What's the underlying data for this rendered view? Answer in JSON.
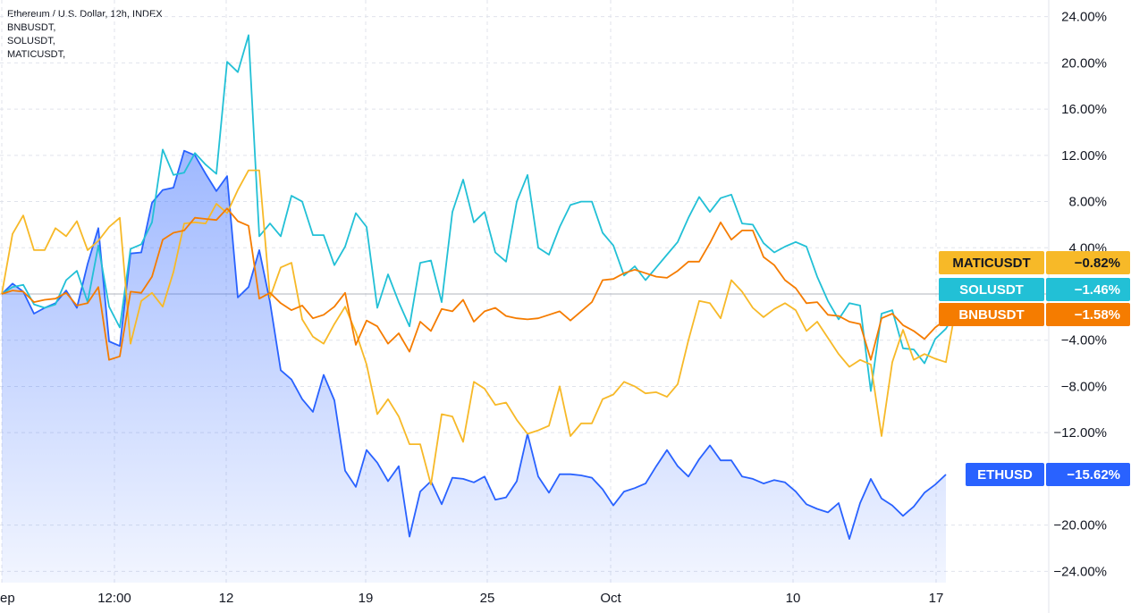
{
  "legend": {
    "main": "Ethereum / U.S. Dollar, 12h, INDEX",
    "compare": [
      "BNBUSDT,",
      "SOLUSDT,",
      "MATICUSDT,"
    ]
  },
  "chart_data": {
    "type": "line",
    "x_tick_labels": [
      "ep",
      "12:00",
      "12",
      "19",
      "25",
      "Oct",
      "10",
      "17"
    ],
    "y_tick_labels": [
      "24.00%",
      "20.00%",
      "16.00%",
      "12.00%",
      "8.00%",
      "4.00%",
      "-4.00%",
      "-8.00%",
      "-12.00%",
      "-20.00%",
      "-24.00%"
    ],
    "y_ticks": [
      24,
      20,
      16,
      12,
      8,
      4,
      -4,
      -8,
      -12,
      -20,
      -24
    ],
    "ylim": [
      -24.5,
      25
    ],
    "grid": true,
    "baseline": 0,
    "series": [
      {
        "name": "ETHUSD",
        "color": "#2962ff",
        "area": true,
        "label": "ETHUSD",
        "last_value": "−15.62%",
        "values": [
          0,
          0.9,
          0.2,
          -1.7,
          -1.2,
          -0.8,
          0.3,
          -1.2,
          2.6,
          5.7,
          -4.1,
          -4.5,
          3.5,
          3.6,
          7.9,
          9,
          9.2,
          12.4,
          12,
          10.4,
          8.9,
          10.2,
          -0.3,
          0.6,
          3.8,
          -0.7,
          -6.6,
          -7.4,
          -9.1,
          -10.2,
          -7,
          -9.2,
          -15.3,
          -16.7,
          -13.5,
          -14.6,
          -16.2,
          -14.9,
          -21,
          -17.1,
          -16.2,
          -18.2,
          -15.9,
          -16,
          -16.3,
          -15.8,
          -17.8,
          -17.6,
          -16.2,
          -12.1,
          -15.8,
          -17.2,
          -15.6,
          -15.6,
          -15.7,
          -15.9,
          -16.9,
          -18.3,
          -17.1,
          -16.8,
          -16.4,
          -14.9,
          -13.5,
          -14.9,
          -15.8,
          -14.3,
          -13.1,
          -14.4,
          -14.4,
          -15.8,
          -16,
          -16.4,
          -16.1,
          -16.3,
          -17.1,
          -18.2,
          -18.6,
          -18.9,
          -18.1,
          -21.2,
          -18.1,
          -16,
          -17.7,
          -18.3,
          -19.2,
          -18.4,
          -17.2,
          -16.5,
          -15.62
        ]
      },
      {
        "name": "SOLUSDT",
        "color": "#22c0d6",
        "area": false,
        "label": "SOLUSDT",
        "last_value": "−1.46%",
        "values": [
          0,
          0.6,
          0.8,
          -0.9,
          -1.2,
          -0.9,
          1.2,
          2,
          -0.7,
          4.2,
          -1.1,
          -2.9,
          3.9,
          4.3,
          6.2,
          12.5,
          10.3,
          10.5,
          12.2,
          11.2,
          10.4,
          20.1,
          19.2,
          22.4,
          5,
          6.1,
          5,
          8.5,
          8,
          5.1,
          5.1,
          2.5,
          4.1,
          7,
          5.8,
          -1.2,
          1.7,
          -0.7,
          -2.8,
          2.7,
          2.9,
          -0.7,
          7.1,
          9.9,
          6.2,
          7.1,
          3.6,
          2.8,
          8,
          10.3,
          4,
          3.4,
          5.8,
          7.7,
          8,
          8,
          5.3,
          4.2,
          1.6,
          2.4,
          1.2,
          2.3,
          3.4,
          4.5,
          6.6,
          8.4,
          7.1,
          8.3,
          8.6,
          6.1,
          6,
          4.4,
          3.6,
          4.1,
          4.5,
          4.1,
          1.5,
          -0.6,
          -2.2,
          -0.8,
          -1,
          -8.4,
          -1.7,
          -1.4,
          -4.7,
          -4.8,
          -6,
          -3.9,
          -3,
          -1.46
        ]
      },
      {
        "name": "MATICUSDT",
        "color": "#f7b928",
        "area": false,
        "label": "MATICUSDT",
        "last_value": "−0.82%",
        "values": [
          0,
          5.2,
          6.8,
          3.8,
          3.8,
          5.7,
          5,
          6.3,
          3.8,
          4.6,
          5.8,
          6.6,
          -4.3,
          -0.6,
          0.1,
          -1.1,
          1.9,
          6.1,
          6.2,
          6.1,
          7.8,
          7,
          9,
          10.7,
          10.7,
          -0.3,
          2.3,
          2.7,
          -2.2,
          -3.7,
          -4.3,
          -2.6,
          -1.1,
          -3.3,
          -6.1,
          -10.4,
          -9.1,
          -10.6,
          -13,
          -13,
          -16.5,
          -10.4,
          -10.6,
          -12.8,
          -7.6,
          -8.2,
          -9.6,
          -9.4,
          -10.9,
          -12.1,
          -11.8,
          -11.4,
          -8,
          -12.3,
          -11.2,
          -11.2,
          -9.1,
          -8.7,
          -7.6,
          -8,
          -8.6,
          -8.5,
          -8.9,
          -7.8,
          -4,
          -0.6,
          -0.8,
          -2.1,
          1.2,
          0.2,
          -1.2,
          -2,
          -1.3,
          -0.8,
          -1.4,
          -3.2,
          -2.4,
          -3.8,
          -5.2,
          -6.3,
          -5.7,
          -6.1,
          -12.3,
          -5.9,
          -3.1,
          -5.7,
          -5.2,
          -5.6,
          -5.9,
          -0.82
        ]
      },
      {
        "name": "BNBUSDT",
        "color": "#f57c00",
        "area": false,
        "label": "BNBUSDT",
        "last_value": "−1.58%",
        "values": [
          0,
          0.3,
          0.2,
          -0.7,
          -0.5,
          -0.4,
          0.1,
          -1,
          -0.8,
          0.6,
          -5.7,
          -5.4,
          0.2,
          0.1,
          1.5,
          4.7,
          5.3,
          5.5,
          6.6,
          6.5,
          6.4,
          7.4,
          6.3,
          5.9,
          -0.4,
          0.1,
          -0.8,
          -1.4,
          -1,
          -2.1,
          -1.8,
          -1.1,
          0.1,
          -4.4,
          -2.3,
          -2.8,
          -4.3,
          -3.4,
          -5,
          -2.4,
          -3.2,
          -1.3,
          -1.5,
          -0.5,
          -2.4,
          -1.5,
          -1.2,
          -1.9,
          -2.1,
          -2.2,
          -2.1,
          -1.8,
          -1.5,
          -2.3,
          -1.5,
          -0.7,
          1.2,
          1.3,
          1.8,
          2.1,
          1.8,
          1.5,
          1.4,
          2,
          2.8,
          2.8,
          4.4,
          6.2,
          4.7,
          5.5,
          5.5,
          3.2,
          2.5,
          1.2,
          0.5,
          -0.8,
          -0.7,
          -1.8,
          -1.9,
          -2.4,
          -2.6,
          -5.7,
          -2.1,
          -1.7,
          -2.7,
          -3.2,
          -3.9,
          -2.9,
          -2.2,
          -1.58
        ]
      }
    ]
  }
}
